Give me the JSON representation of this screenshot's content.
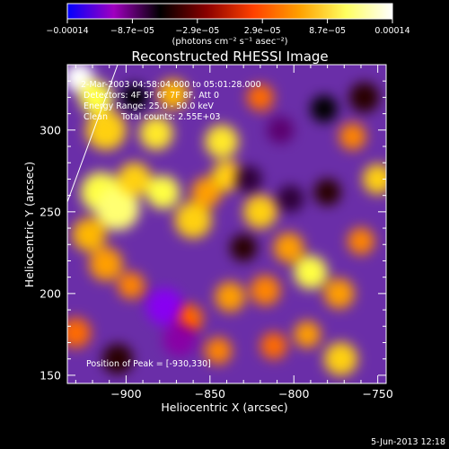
{
  "chart_data": {
    "type": "heatmap",
    "title": "Reconstructed RHESSI Image",
    "xlabel": "Heliocentric X (arcsec)",
    "ylabel": "Heliocentric Y (arcsec)",
    "xlim": [
      -935,
      -745
    ],
    "ylim": [
      145,
      340
    ],
    "x_ticks": [
      -900,
      -850,
      -800,
      -750
    ],
    "x_tick_labels": [
      "−900",
      "−850",
      "−800",
      "−750"
    ],
    "y_ticks": [
      150,
      200,
      250,
      300
    ],
    "y_tick_labels": [
      "150",
      "200",
      "250",
      "300"
    ],
    "colorbar": {
      "range": [
        -0.00014,
        0.00014
      ],
      "tick_labels": [
        "−0.00014",
        "−8.7e−05",
        "−2.9e−05",
        "2.9e−05",
        "8.7e−05",
        "0.00014"
      ],
      "unit_label": "(photons cm⁻² s⁻¹ asec⁻²)",
      "colormap": [
        "#0000ff",
        "#a000c0",
        "#000000",
        "#8a0000",
        "#ff4000",
        "#ffa000",
        "#ffff60",
        "#ffffff"
      ]
    },
    "annotations": [
      "2-Mar-2003 04:58:04.000 to 05:01:28.000",
      "Detectors: 4F 5F 6F 7F 8F, Att 0",
      "Energy Range: 25.0 - 50.0 keV",
      "Clean     Total counts: 2.55E+03"
    ],
    "peak_label": "Position of Peak = [-930,330]",
    "peak_position": [
      -930,
      330
    ],
    "limb_line": [
      [
        -935,
        256
      ],
      [
        -905,
        340
      ]
    ],
    "blobs": [
      {
        "x": -928,
        "y": 332,
        "v": 0.00014,
        "r": 9
      },
      {
        "x": -918,
        "y": 320,
        "v": 0.0001,
        "r": 10
      },
      {
        "x": -912,
        "y": 300,
        "v": 8e-05,
        "r": 12
      },
      {
        "x": -915,
        "y": 262,
        "v": 0.0001,
        "r": 12
      },
      {
        "x": -905,
        "y": 252,
        "v": 0.00011,
        "r": 13
      },
      {
        "x": -922,
        "y": 236,
        "v": 7e-05,
        "r": 10
      },
      {
        "x": -912,
        "y": 218,
        "v": 6e-05,
        "r": 10
      },
      {
        "x": -895,
        "y": 270,
        "v": 8e-05,
        "r": 10
      },
      {
        "x": -882,
        "y": 298,
        "v": 9e-05,
        "r": 10
      },
      {
        "x": -872,
        "y": 322,
        "v": 7e-05,
        "r": 9
      },
      {
        "x": -878,
        "y": 262,
        "v": 0.0001,
        "r": 10
      },
      {
        "x": -860,
        "y": 245,
        "v": 8e-05,
        "r": 11
      },
      {
        "x": -852,
        "y": 262,
        "v": 6e-05,
        "r": 9
      },
      {
        "x": -843,
        "y": 293,
        "v": 9e-05,
        "r": 10
      },
      {
        "x": -840,
        "y": 272,
        "v": 8e-05,
        "r": 9
      },
      {
        "x": -820,
        "y": 250,
        "v": 8e-05,
        "r": 10
      },
      {
        "x": -803,
        "y": 228,
        "v": 6e-05,
        "r": 9
      },
      {
        "x": -790,
        "y": 213,
        "v": 0.0001,
        "r": 10
      },
      {
        "x": -773,
        "y": 200,
        "v": 6e-05,
        "r": 9
      },
      {
        "x": -772,
        "y": 160,
        "v": 8e-05,
        "r": 10
      },
      {
        "x": -792,
        "y": 175,
        "v": 6e-05,
        "r": 8
      },
      {
        "x": -817,
        "y": 202,
        "v": 5e-05,
        "r": 9
      },
      {
        "x": -838,
        "y": 198,
        "v": 6e-05,
        "r": 9
      },
      {
        "x": -812,
        "y": 168,
        "v": 4e-05,
        "r": 8
      },
      {
        "x": -750,
        "y": 270,
        "v": 8e-05,
        "r": 9
      },
      {
        "x": -760,
        "y": 232,
        "v": 5e-05,
        "r": 8
      },
      {
        "x": -765,
        "y": 296,
        "v": 5e-05,
        "r": 8
      },
      {
        "x": -845,
        "y": 165,
        "v": 5e-05,
        "r": 8
      },
      {
        "x": -862,
        "y": 185,
        "v": 4e-05,
        "r": 8
      },
      {
        "x": -930,
        "y": 176,
        "v": 4e-05,
        "r": 9
      },
      {
        "x": -897,
        "y": 205,
        "v": 5e-05,
        "r": 8
      },
      {
        "x": -820,
        "y": 320,
        "v": 4e-05,
        "r": 8
      },
      {
        "x": -877,
        "y": 192,
        "v": -0.00011,
        "r": 11
      },
      {
        "x": -868,
        "y": 172,
        "v": -9e-05,
        "r": 10
      },
      {
        "x": -808,
        "y": 300,
        "v": -8e-05,
        "r": 8
      },
      {
        "x": -782,
        "y": 313,
        "v": -6e-05,
        "r": 8
      },
      {
        "x": -827,
        "y": 270,
        "v": -7e-05,
        "r": 8
      },
      {
        "x": -802,
        "y": 258,
        "v": -7e-05,
        "r": 8
      },
      {
        "x": -895,
        "y": 320,
        "v": -6e-05,
        "r": 8
      },
      {
        "x": -780,
        "y": 262,
        "v": -5e-05,
        "r": 8
      },
      {
        "x": -758,
        "y": 320,
        "v": -5e-05,
        "r": 9
      },
      {
        "x": -905,
        "y": 160,
        "v": -5e-05,
        "r": 9
      },
      {
        "x": -830,
        "y": 228,
        "v": -5e-05,
        "r": 8
      }
    ]
  },
  "footer": {
    "date": "5-Jun-2013 12:18"
  }
}
